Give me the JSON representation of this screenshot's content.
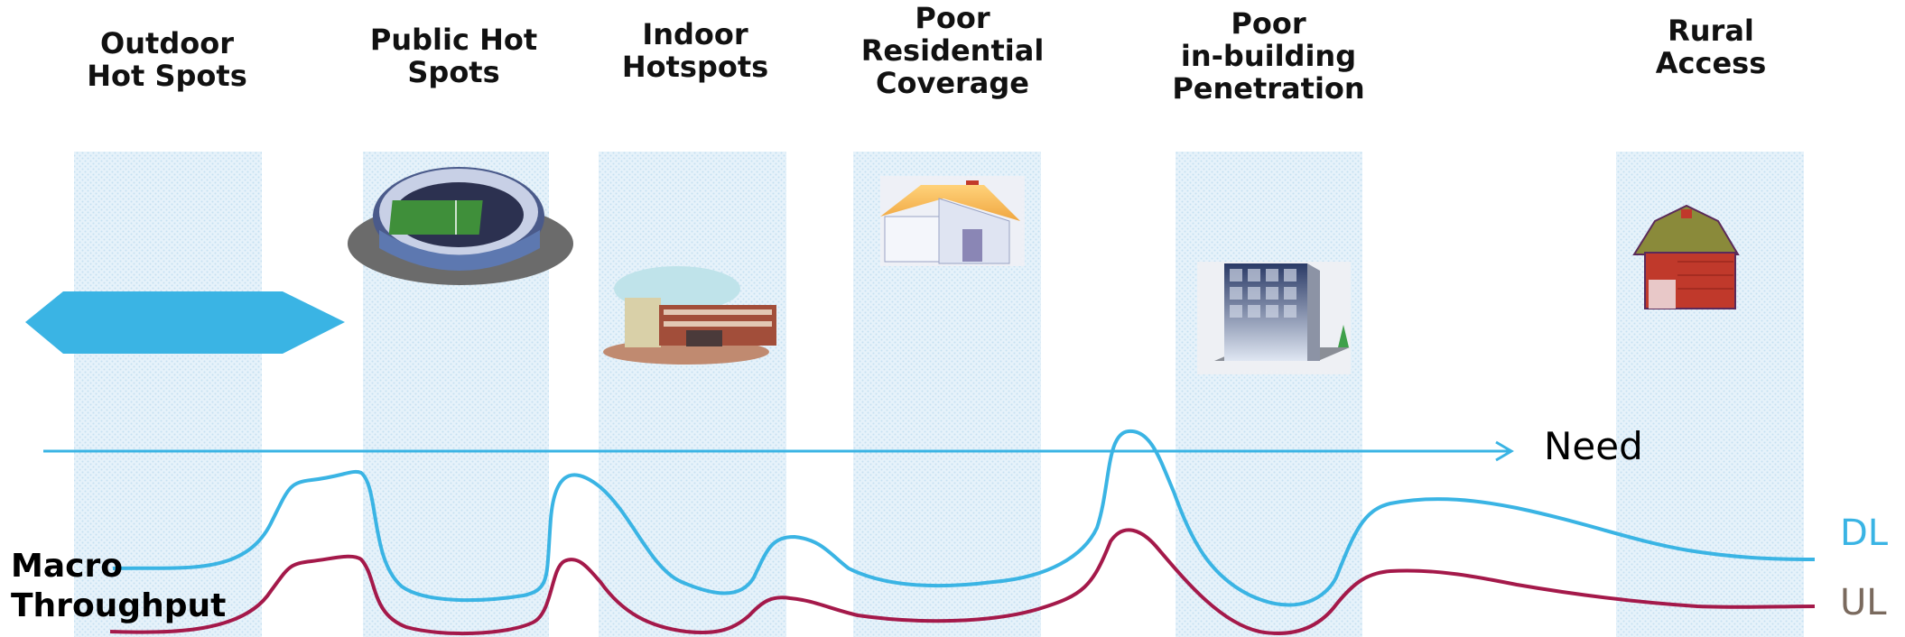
{
  "categories": [
    {
      "label": "Outdoor\nHot Spots",
      "icon": "hexagon-icon"
    },
    {
      "label": "Public Hot\nSpots",
      "icon": "stadium-icon"
    },
    {
      "label": "Indoor\nHotspots",
      "icon": "school-building-icon"
    },
    {
      "label": "Poor\nResidential\nCoverage",
      "icon": "house-icon"
    },
    {
      "label": "Poor\nin-building\nPenetration",
      "icon": "office-tower-icon"
    },
    {
      "label": "Rural\nAccess",
      "icon": "barn-icon"
    }
  ],
  "need_label": "Need",
  "dl_label": "DL",
  "ul_label": "UL",
  "macro_label": "Macro\nThroughput",
  "colors": {
    "band": "#dcecf7",
    "dl": "#3ab4e4",
    "ul": "#a4194a",
    "need": "#3ab4e4",
    "hexagon": "#3ab4e4",
    "ul_text": "#7a6a5e"
  }
}
